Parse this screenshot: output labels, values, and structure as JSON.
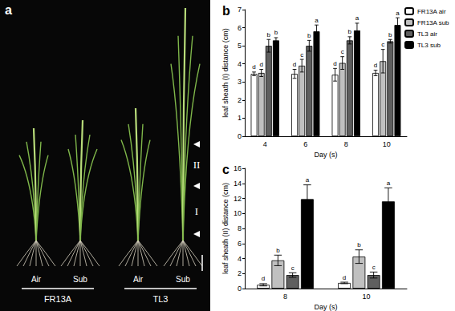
{
  "panel_a": {
    "label": "a",
    "groups": [
      {
        "name": "FR13A",
        "conditions": [
          "Air",
          "Sub"
        ]
      },
      {
        "name": "TL3",
        "conditions": [
          "Air",
          "Sub"
        ]
      }
    ],
    "sections": [
      "II",
      "I"
    ]
  },
  "chart_data": [
    {
      "type": "bar",
      "title": "b",
      "x_label": "Day (s)",
      "y_label": "leaf sheath (I) distance (cm)",
      "categories": [
        "4",
        "6",
        "8",
        "10"
      ],
      "series": [
        {
          "name": "FR13A air",
          "color": "#ffffff",
          "values": [
            3.45,
            3.45,
            3.4,
            3.5
          ],
          "errors": [
            0.1,
            0.25,
            0.35,
            0.15
          ],
          "letters": [
            "d",
            "d",
            "d",
            "d"
          ]
        },
        {
          "name": "FR13A sub",
          "color": "#c0c0c0",
          "values": [
            3.5,
            3.9,
            4.05,
            4.15
          ],
          "errors": [
            0.2,
            0.35,
            0.35,
            0.65
          ],
          "letters": [
            "d",
            "c",
            "c",
            "c"
          ]
        },
        {
          "name": "TL3 air",
          "color": "#5f5f5f",
          "values": [
            5.0,
            5.0,
            5.3,
            5.25
          ],
          "errors": [
            0.35,
            0.3,
            0.2,
            0.1
          ],
          "letters": [
            "b",
            "b",
            "b",
            "b"
          ]
        },
        {
          "name": "TL3 sub",
          "color": "#000000",
          "values": [
            5.3,
            5.8,
            5.85,
            6.15
          ],
          "errors": [
            0.15,
            0.35,
            0.4,
            0.4
          ],
          "letters": [
            "b",
            "a",
            "a",
            "a"
          ]
        }
      ],
      "ylim": [
        0,
        7
      ],
      "yticks": [
        0,
        1,
        2,
        3,
        4,
        5,
        6,
        7
      ],
      "grid": false,
      "legend": "top-right"
    },
    {
      "type": "bar",
      "title": "c",
      "x_label": "Day (s)",
      "y_label": "leaf sheath (II) distance (cm)",
      "categories": [
        "8",
        "10"
      ],
      "series": [
        {
          "name": "FR13A air",
          "color": "#ffffff",
          "values": [
            0.5,
            0.75
          ],
          "errors": [
            0.15,
            0.1
          ],
          "letters": [
            "d",
            "d"
          ]
        },
        {
          "name": "FR13A sub",
          "color": "#c0c0c0",
          "values": [
            3.75,
            4.25
          ],
          "errors": [
            0.7,
            0.9
          ],
          "letters": [
            "b",
            "b"
          ]
        },
        {
          "name": "TL3 air",
          "color": "#5f5f5f",
          "values": [
            1.8,
            1.8
          ],
          "errors": [
            0.3,
            0.4
          ],
          "letters": [
            "c",
            "c"
          ]
        },
        {
          "name": "TL3 sub",
          "color": "#000000",
          "values": [
            11.9,
            11.6
          ],
          "errors": [
            1.9,
            1.8
          ],
          "letters": [
            "a",
            "a"
          ]
        }
      ],
      "ylim": [
        0,
        16
      ],
      "yticks": [
        0,
        2,
        4,
        6,
        8,
        10,
        12,
        14,
        16
      ],
      "grid": false
    }
  ]
}
